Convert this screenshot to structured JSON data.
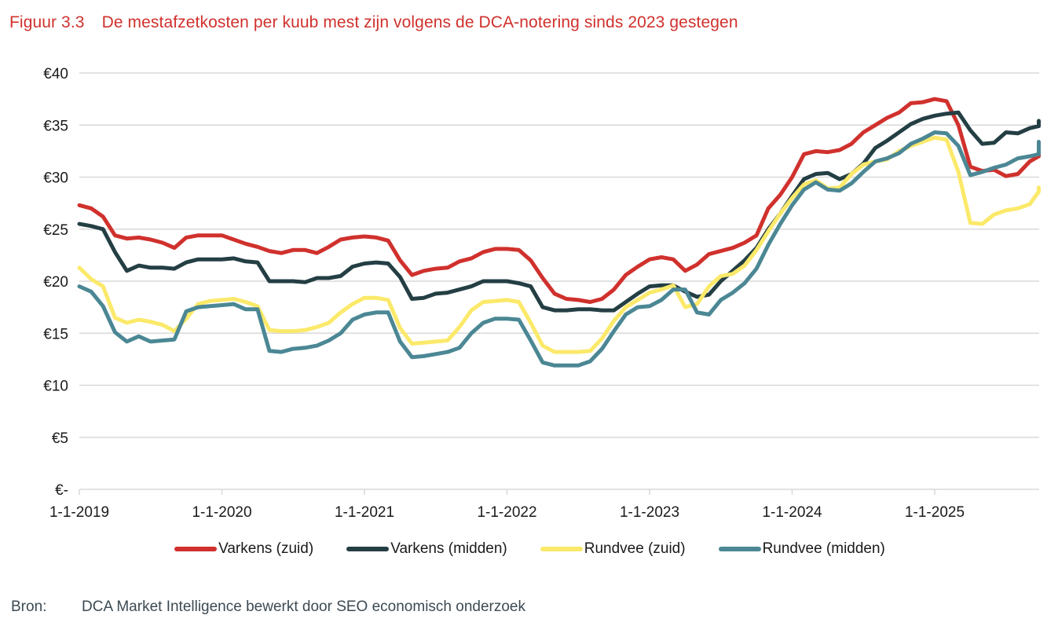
{
  "figure": {
    "number": "Figuur 3.3",
    "title": "De mestafzetkosten per kuub mest zijn volgens de DCA-notering sinds 2023 gestegen"
  },
  "source": {
    "label": "Bron:",
    "text": "DCA Market Intelligence bewerkt door SEO economisch onderzoek"
  },
  "chart_data": {
    "type": "line",
    "title": "De mestafzetkosten per kuub mest zijn volgens de DCA-notering sinds 2023 gestegen",
    "xlabel": "",
    "ylabel": "",
    "x_unit": "decimal year (monthly samples from Jan 2019)",
    "x_start": 2019.0,
    "x_step": 0.0833333,
    "xlim": [
      2019.0,
      2025.73
    ],
    "ylim": [
      0,
      40
    ],
    "yticks": [
      0,
      5,
      10,
      15,
      20,
      25,
      30,
      35,
      40
    ],
    "ytick_labels": [
      "€-",
      "€5",
      "€10",
      "€15",
      "€20",
      "€25",
      "€30",
      "€35",
      "€40"
    ],
    "xticks": [
      2019,
      2020,
      2021,
      2022,
      2023,
      2024,
      2025
    ],
    "xtick_labels": [
      "1-1-2019",
      "1-1-2020",
      "1-1-2021",
      "1-1-2022",
      "1-1-2023",
      "1-1-2024",
      "1-1-2025"
    ],
    "grid": true,
    "legend_position": "bottom",
    "series": [
      {
        "name": "Varkens (zuid)",
        "color": "#d0312d",
        "values": [
          27.3,
          27.0,
          26.2,
          24.4,
          24.1,
          24.2,
          24.0,
          23.7,
          23.2,
          24.2,
          24.4,
          24.4,
          24.4,
          24.0,
          23.6,
          23.3,
          22.9,
          22.7,
          23.0,
          23.0,
          22.7,
          23.3,
          24.0,
          24.2,
          24.3,
          24.2,
          23.9,
          22.0,
          20.6,
          21.0,
          21.2,
          21.3,
          21.9,
          22.2,
          22.8,
          23.1,
          23.1,
          23.0,
          22.0,
          20.3,
          18.8,
          18.3,
          18.2,
          18.0,
          18.3,
          19.2,
          20.6,
          21.4,
          22.1,
          22.3,
          22.1,
          21.0,
          21.6,
          22.6,
          22.9,
          23.2,
          23.7,
          24.4,
          27.0,
          28.3,
          30.0,
          32.2,
          32.5,
          32.4,
          32.6,
          33.2,
          34.3,
          35.0,
          35.7,
          36.2,
          37.1,
          37.2,
          37.5,
          37.3,
          35.0,
          31.0,
          30.6,
          30.7,
          30.1,
          30.3,
          31.5,
          32.0,
          33.2
        ]
      },
      {
        "name": "Varkens (midden)",
        "color": "#243f44",
        "values": [
          25.5,
          25.3,
          25.0,
          22.8,
          21.0,
          21.5,
          21.3,
          21.3,
          21.2,
          21.8,
          22.1,
          22.1,
          22.1,
          22.2,
          21.9,
          21.8,
          20.0,
          20.0,
          20.0,
          19.9,
          20.3,
          20.3,
          20.5,
          21.4,
          21.7,
          21.8,
          21.7,
          20.4,
          18.3,
          18.4,
          18.8,
          18.9,
          19.2,
          19.5,
          20.0,
          20.0,
          20.0,
          19.8,
          19.5,
          17.5,
          17.2,
          17.2,
          17.3,
          17.3,
          17.2,
          17.2,
          18.0,
          18.8,
          19.5,
          19.6,
          19.6,
          19.0,
          18.5,
          18.7,
          20.0,
          21.0,
          22.0,
          23.2,
          25.0,
          26.5,
          28.2,
          29.8,
          30.3,
          30.4,
          29.8,
          30.3,
          31.3,
          32.8,
          33.5,
          34.3,
          35.1,
          35.6,
          35.9,
          36.1,
          36.2,
          34.5,
          33.2,
          33.3,
          34.3,
          34.2,
          34.7,
          34.9,
          35.4
        ]
      },
      {
        "name": "Rundvee (zuid)",
        "color": "#fbe96a",
        "values": [
          21.3,
          20.2,
          19.5,
          16.5,
          16.0,
          16.3,
          16.1,
          15.8,
          15.2,
          16.4,
          17.8,
          18.1,
          18.2,
          18.3,
          18.0,
          17.6,
          15.3,
          15.2,
          15.2,
          15.3,
          15.6,
          16.0,
          17.0,
          17.8,
          18.4,
          18.4,
          18.2,
          15.5,
          14.0,
          14.1,
          14.2,
          14.3,
          15.6,
          17.2,
          18.0,
          18.1,
          18.2,
          18.0,
          16.0,
          13.8,
          13.2,
          13.2,
          13.2,
          13.3,
          14.5,
          16.2,
          17.5,
          18.2,
          18.9,
          19.2,
          19.6,
          17.5,
          17.8,
          19.5,
          20.5,
          20.7,
          21.5,
          23.0,
          24.8,
          26.5,
          28.0,
          29.3,
          29.7,
          28.9,
          29.0,
          30.3,
          31.2,
          31.5,
          31.7,
          32.5,
          33.0,
          33.4,
          33.8,
          33.6,
          30.5,
          25.6,
          25.5,
          26.4,
          26.8,
          27.0,
          27.4,
          28.6,
          29.0
        ]
      },
      {
        "name": "Rundvee (midden)",
        "color": "#4b8794",
        "values": [
          19.5,
          19.0,
          17.6,
          15.1,
          14.2,
          14.7,
          14.2,
          14.3,
          14.4,
          17.1,
          17.5,
          17.6,
          17.7,
          17.8,
          17.3,
          17.3,
          13.3,
          13.2,
          13.5,
          13.6,
          13.8,
          14.3,
          15.0,
          16.3,
          16.8,
          17.0,
          17.0,
          14.2,
          12.7,
          12.8,
          13.0,
          13.2,
          13.6,
          15.0,
          16.0,
          16.4,
          16.4,
          16.3,
          14.3,
          12.2,
          11.9,
          11.9,
          11.9,
          12.3,
          13.5,
          15.2,
          16.8,
          17.5,
          17.6,
          18.2,
          19.2,
          19.2,
          17.0,
          16.8,
          18.2,
          18.9,
          19.8,
          21.2,
          23.5,
          25.5,
          27.3,
          28.8,
          29.5,
          28.8,
          28.7,
          29.4,
          30.5,
          31.5,
          31.8,
          32.3,
          33.2,
          33.7,
          34.3,
          34.2,
          33.0,
          30.2,
          30.5,
          30.9,
          31.2,
          31.8,
          32.0,
          32.2,
          33.4
        ]
      }
    ]
  }
}
